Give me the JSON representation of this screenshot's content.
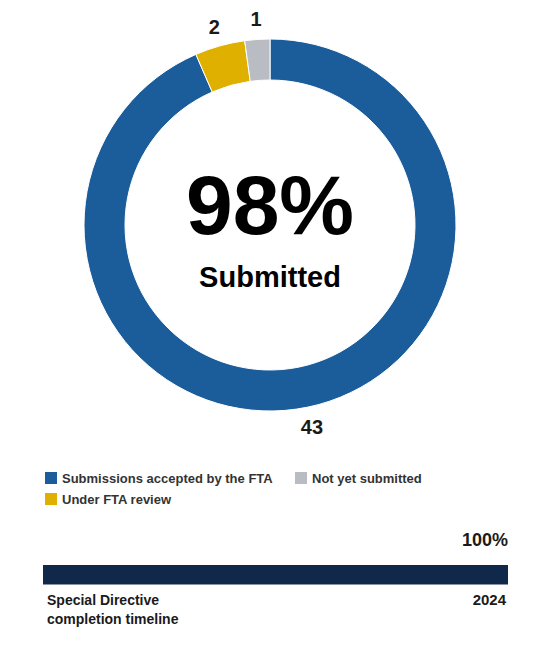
{
  "chart_data": [
    {
      "type": "donut",
      "categories": [
        "Submissions accepted by the FTA",
        "Under FTA review",
        "Not yet submitted"
      ],
      "values": [
        43,
        2,
        1
      ],
      "colors": [
        "#1b5c9b",
        "#e0b000",
        "#b9bcc3"
      ],
      "data_labels": true,
      "legend": "bottom",
      "annotations": [
        {
          "value": 98,
          "label": "98%"
        },
        "Submitted"
      ]
    },
    {
      "type": "bar",
      "orientation": "horizontal",
      "values": [
        100
      ],
      "value_labels": [
        "100%"
      ],
      "data_labels": true,
      "color": "#10294a",
      "xlim": [
        0,
        100
      ],
      "tick_labels": false,
      "xlabel": "Special Directive completion timeline",
      "annotations": [
        "2024"
      ]
    }
  ]
}
